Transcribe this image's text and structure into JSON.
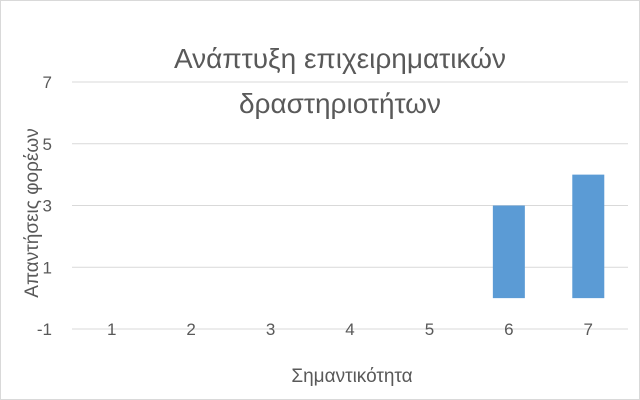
{
  "chart_data": {
    "type": "bar",
    "title_lines": [
      "Ανάπτυξη επιχειρηματικών",
      "δραστηριοτήτων"
    ],
    "xlabel": "Σημαντικότητα",
    "ylabel": "Απαντήσεις φορέων",
    "categories": [
      "1",
      "2",
      "3",
      "4",
      "5",
      "6",
      "7"
    ],
    "values": [
      0,
      0,
      0,
      0,
      0,
      3,
      4
    ],
    "ylim": [
      -1,
      7
    ],
    "yticks": [
      "-1",
      "1",
      "3",
      "5",
      "7"
    ],
    "grid": true,
    "colors": {
      "bar": "#5b9bd5",
      "grid": "#d9d9d9",
      "text": "#595959"
    }
  }
}
